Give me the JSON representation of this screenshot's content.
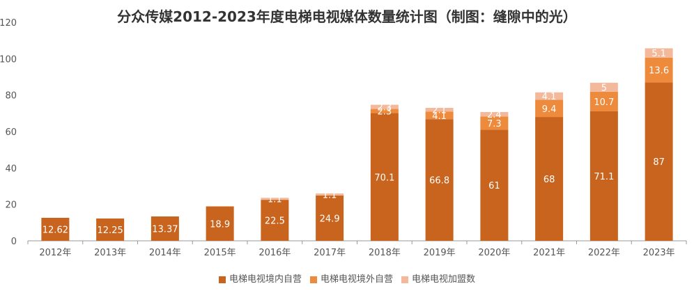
{
  "chart_data": {
    "type": "bar",
    "stacked": true,
    "title": "分众传媒2012-2023年度电梯电视媒体数量统计图（制图：缝隙中的光）",
    "categories": [
      "2012年",
      "2013年",
      "2014年",
      "2015年",
      "2016年",
      "2017年",
      "2018年",
      "2019年",
      "2020年",
      "2021年",
      "2022年",
      "2023年"
    ],
    "series": [
      {
        "name": "电梯电视境内自营",
        "color": "#c8641e",
        "values": [
          12.62,
          12.25,
          13.37,
          18.9,
          22.5,
          24.9,
          70.1,
          66.8,
          61,
          68,
          71.1,
          87
        ]
      },
      {
        "name": "电梯电视境外自营",
        "color": "#ee8a3c",
        "values": [
          null,
          null,
          null,
          null,
          null,
          null,
          2.3,
          4.1,
          7.3,
          9.4,
          10.7,
          13.6
        ]
      },
      {
        "name": "电梯电视加盟数",
        "color": "#f3b99a",
        "values": [
          null,
          null,
          null,
          null,
          1.1,
          1.1,
          2.3,
          2.1,
          2.4,
          4.1,
          5,
          5.1
        ]
      }
    ],
    "ylim": [
      0,
      120
    ],
    "yticks": [
      0,
      20,
      40,
      60,
      80,
      100,
      120
    ],
    "grid": false,
    "legend": "bottom"
  }
}
